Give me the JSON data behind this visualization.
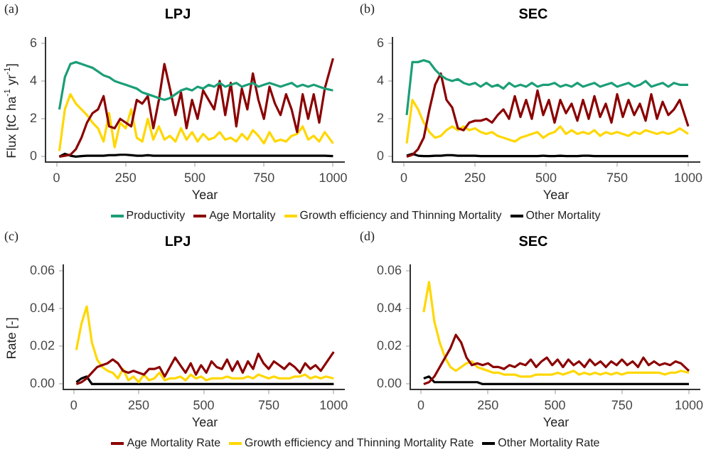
{
  "chart_data": [
    {
      "type": "line",
      "title": "LPJ",
      "xlabel": "Year",
      "ylabel": "Flux [tC ha$^{-1}$ yr$^{-1}$]",
      "annotations": [
        "(a)"
      ],
      "legend": "bottom",
      "marker": "none",
      "x": [
        10,
        30,
        50,
        70,
        90,
        110,
        130,
        150,
        170,
        190,
        210,
        230,
        250,
        270,
        290,
        310,
        330,
        350,
        370,
        390,
        410,
        430,
        450,
        470,
        490,
        510,
        530,
        550,
        570,
        590,
        610,
        630,
        650,
        670,
        690,
        710,
        730,
        750,
        770,
        790,
        810,
        830,
        850,
        870,
        890,
        910,
        930,
        950,
        970,
        1000
      ],
      "xlim": [
        -40,
        1040
      ],
      "xticks": [
        0,
        250,
        500,
        750,
        1000
      ],
      "ylim": [
        -0.3,
        6.3
      ],
      "yticks": [
        0,
        2,
        4,
        6
      ],
      "series": [
        {
          "name": "Productivity",
          "color": "#1b9e77",
          "values": [
            2.5,
            4.2,
            4.9,
            5.0,
            4.9,
            4.8,
            4.7,
            4.5,
            4.3,
            4.2,
            4.0,
            3.9,
            3.8,
            3.7,
            3.6,
            3.4,
            3.3,
            3.2,
            3.1,
            3.0,
            3.1,
            3.3,
            3.5,
            3.6,
            3.5,
            3.7,
            3.6,
            3.8,
            3.7,
            3.9,
            3.7,
            3.8,
            3.9,
            3.7,
            3.8,
            3.9,
            3.7,
            3.8,
            3.9,
            3.8,
            3.7,
            3.8,
            3.9,
            3.7,
            3.8,
            3.7,
            3.8,
            3.7,
            3.6,
            3.5
          ]
        },
        {
          "name": "Age Mortality",
          "color": "#8b0000",
          "values": [
            0,
            0.05,
            0.1,
            0.4,
            1.0,
            1.8,
            2.3,
            2.5,
            3.2,
            1.6,
            1.5,
            2.0,
            1.8,
            1.6,
            3.0,
            2.8,
            3.2,
            1.5,
            3.0,
            4.9,
            3.6,
            2.2,
            3.4,
            1.5,
            3.0,
            2.0,
            3.5,
            3.0,
            2.5,
            4.0,
            2.2,
            3.9,
            1.6,
            3.6,
            2.5,
            4.4,
            3.0,
            2.0,
            3.7,
            2.8,
            2.2,
            3.3,
            2.5,
            1.3,
            3.3,
            2.0,
            3.3,
            1.8,
            3.6,
            5.2
          ]
        },
        {
          "name": "Growth efficiency and Thinning Mortality",
          "color": "#ffd700",
          "values": [
            0.3,
            2.5,
            3.3,
            2.8,
            2.5,
            2.2,
            1.8,
            1.5,
            0.8,
            2.3,
            0.5,
            1.8,
            1.5,
            2.5,
            1.0,
            0.8,
            2.0,
            0.9,
            1.6,
            0.9,
            1.1,
            0.8,
            1.5,
            0.9,
            1.3,
            0.8,
            1.2,
            0.9,
            1.0,
            1.3,
            0.9,
            1.0,
            0.8,
            1.2,
            0.9,
            1.4,
            1.1,
            0.7,
            1.3,
            0.8,
            0.9,
            0.8,
            1.1,
            1.2,
            1.6,
            0.9,
            1.1,
            0.8,
            1.3,
            0.7
          ]
        },
        {
          "name": "Other Mortality",
          "color": "#000000",
          "values": [
            0,
            0.15,
            0.05,
            0,
            0.03,
            0.05,
            0.05,
            0.05,
            0.05,
            0.08,
            0.08,
            0.1,
            0.1,
            0.08,
            0.05,
            0.05,
            0.08,
            0.05,
            0.05,
            0.05,
            0.05,
            0.05,
            0.05,
            0.05,
            0.05,
            0.05,
            0.05,
            0.05,
            0.05,
            0.05,
            0.05,
            0.05,
            0.05,
            0.05,
            0.05,
            0.05,
            0.05,
            0.05,
            0.05,
            0.05,
            0.05,
            0.05,
            0.05,
            0.05,
            0.05,
            0.05,
            0.05,
            0.05,
            0.05,
            0.03
          ]
        }
      ]
    },
    {
      "type": "line",
      "title": "SEC",
      "xlabel": "Year",
      "annotations": [
        "(b)"
      ],
      "marker": "none",
      "x": [
        10,
        30,
        50,
        70,
        90,
        110,
        130,
        150,
        170,
        190,
        210,
        230,
        250,
        270,
        290,
        310,
        330,
        350,
        370,
        390,
        410,
        430,
        450,
        470,
        490,
        510,
        530,
        550,
        570,
        590,
        610,
        630,
        650,
        670,
        690,
        710,
        730,
        750,
        770,
        790,
        810,
        830,
        850,
        870,
        890,
        910,
        930,
        950,
        970,
        1000
      ],
      "xlim": [
        -40,
        1040
      ],
      "xticks": [
        0,
        250,
        500,
        750,
        1000
      ],
      "ylim": [
        -0.3,
        6.3
      ],
      "yticks": [
        0,
        2,
        4,
        6
      ],
      "series": [
        {
          "color": "#1b9e77",
          "values": [
            2.2,
            5.0,
            5.0,
            5.1,
            5.0,
            4.6,
            4.3,
            4.1,
            4.0,
            4.1,
            3.9,
            3.8,
            3.9,
            3.7,
            3.9,
            3.7,
            3.8,
            3.6,
            3.9,
            3.7,
            3.8,
            3.7,
            3.9,
            3.7,
            3.8,
            3.8,
            3.9,
            3.7,
            3.8,
            3.7,
            3.9,
            3.7,
            3.8,
            3.9,
            3.7,
            3.8,
            3.9,
            3.7,
            3.8,
            3.9,
            3.7,
            3.8,
            4.0,
            3.7,
            3.8,
            3.9,
            3.7,
            3.9,
            3.8,
            3.8
          ]
        },
        {
          "color": "#8b0000",
          "values": [
            0,
            0.1,
            0.4,
            1.0,
            2.5,
            3.8,
            4.4,
            3.0,
            2.6,
            1.5,
            1.4,
            1.8,
            1.9,
            1.9,
            2.0,
            1.8,
            2.2,
            2.5,
            2.0,
            3.2,
            2.1,
            3.0,
            2.0,
            3.5,
            2.2,
            3.0,
            1.8,
            3.0,
            2.3,
            2.8,
            1.9,
            3.0,
            2.0,
            3.2,
            2.1,
            2.8,
            1.8,
            3.3,
            2.1,
            3.0,
            2.2,
            2.8,
            1.9,
            3.3,
            2.0,
            2.9,
            2.2,
            2.5,
            3.0,
            1.6
          ]
        },
        {
          "color": "#ffd700",
          "values": [
            0.7,
            3.0,
            2.5,
            1.8,
            1.3,
            1.0,
            1.1,
            1.4,
            1.6,
            1.4,
            1.6,
            1.4,
            1.5,
            1.3,
            1.2,
            1.3,
            1.1,
            1.0,
            0.9,
            0.8,
            1.0,
            1.1,
            1.2,
            1.3,
            1.0,
            1.2,
            1.3,
            1.6,
            1.2,
            1.4,
            1.2,
            1.3,
            1.2,
            1.4,
            1.1,
            1.3,
            1.2,
            1.3,
            1.2,
            1.1,
            1.3,
            1.2,
            1.4,
            1.3,
            1.2,
            1.3,
            1.2,
            1.3,
            1.5,
            1.2
          ]
        },
        {
          "color": "#000000",
          "values": [
            0.05,
            0.15,
            0.05,
            0.03,
            0.03,
            0.05,
            0.05,
            0.08,
            0.08,
            0.05,
            0.05,
            0.05,
            0.05,
            0.03,
            0.03,
            0.03,
            0.03,
            0.03,
            0.03,
            0.03,
            0.03,
            0.03,
            0.03,
            0.03,
            0.05,
            0.03,
            0.03,
            0.05,
            0.03,
            0.03,
            0.03,
            0.05,
            0.05,
            0.03,
            0.03,
            0.03,
            0.03,
            0.03,
            0.03,
            0.03,
            0.03,
            0.03,
            0.03,
            0.03,
            0.03,
            0.03,
            0.03,
            0.03,
            0.03,
            0.03
          ]
        }
      ]
    },
    {
      "type": "line",
      "title": "LPJ",
      "xlabel": "Year",
      "ylabel": "Rate [-]",
      "annotations": [
        "(c)"
      ],
      "legend": "bottom",
      "marker": "none",
      "x": [
        10,
        30,
        50,
        70,
        90,
        110,
        130,
        150,
        170,
        190,
        210,
        230,
        250,
        270,
        290,
        310,
        330,
        350,
        370,
        390,
        410,
        430,
        450,
        470,
        490,
        510,
        530,
        550,
        570,
        590,
        610,
        630,
        650,
        670,
        690,
        710,
        730,
        750,
        770,
        790,
        810,
        830,
        850,
        870,
        890,
        910,
        930,
        950,
        970,
        1000
      ],
      "xlim": [
        -40,
        1040
      ],
      "xticks": [
        0,
        250,
        500,
        750,
        1000
      ],
      "ylim": [
        -0.003,
        0.063
      ],
      "yticks": [
        {
          "value": 0,
          "label": "0.00"
        },
        {
          "value": 0.02,
          "label": "0.02"
        },
        {
          "value": 0.04,
          "label": "0.04"
        },
        {
          "value": 0.06,
          "label": "0.06"
        }
      ],
      "series": [
        {
          "name": "Age Mortality Rate",
          "color": "#8b0000",
          "values": [
            0,
            0.001,
            0.003,
            0.006,
            0.009,
            0.01,
            0.011,
            0.013,
            0.011,
            0.007,
            0.006,
            0.007,
            0.006,
            0.005,
            0.008,
            0.008,
            0.009,
            0.004,
            0.009,
            0.014,
            0.01,
            0.006,
            0.011,
            0.005,
            0.01,
            0.006,
            0.012,
            0.009,
            0.008,
            0.013,
            0.007,
            0.012,
            0.006,
            0.012,
            0.008,
            0.016,
            0.011,
            0.008,
            0.012,
            0.01,
            0.008,
            0.011,
            0.009,
            0.006,
            0.011,
            0.008,
            0.01,
            0.007,
            0.011,
            0.017
          ]
        },
        {
          "name": "Growth efficiency and Thinning Mortality Rate",
          "color": "#ffd700",
          "values": [
            0.018,
            0.032,
            0.041,
            0.022,
            0.013,
            0.009,
            0.007,
            0.006,
            0.003,
            0.008,
            0.002,
            0.004,
            0.001,
            0.005,
            0.002,
            0.003,
            0.006,
            0.002,
            0.003,
            0.003,
            0.004,
            0.002,
            0.005,
            0.003,
            0.004,
            0.002,
            0.003,
            0.003,
            0.003,
            0.004,
            0.003,
            0.003,
            0.003,
            0.004,
            0.003,
            0.005,
            0.004,
            0.003,
            0.004,
            0.003,
            0.003,
            0.003,
            0.004,
            0.004,
            0.005,
            0.003,
            0.004,
            0.003,
            0.004,
            0.003
          ]
        },
        {
          "name": "Other Mortality Rate",
          "color": "#000000",
          "values": [
            0.001,
            0.003,
            0.004,
            0,
            0,
            0,
            0,
            0,
            0,
            0,
            0,
            0,
            0,
            0,
            0,
            0,
            0,
            0,
            0,
            0,
            0,
            0,
            0,
            0,
            0,
            0,
            0,
            0,
            0,
            0,
            0,
            0,
            0,
            0,
            0,
            0,
            0,
            0,
            0,
            0,
            0,
            0,
            0,
            0,
            0,
            0,
            0,
            0,
            0,
            0
          ]
        }
      ]
    },
    {
      "type": "line",
      "title": "SEC",
      "xlabel": "Year",
      "annotations": [
        "(d)"
      ],
      "marker": "none",
      "x": [
        10,
        30,
        50,
        70,
        90,
        110,
        130,
        150,
        170,
        190,
        210,
        230,
        250,
        270,
        290,
        310,
        330,
        350,
        370,
        390,
        410,
        430,
        450,
        470,
        490,
        510,
        530,
        550,
        570,
        590,
        610,
        630,
        650,
        670,
        690,
        710,
        730,
        750,
        770,
        790,
        810,
        830,
        850,
        870,
        890,
        910,
        930,
        950,
        970,
        1000
      ],
      "xlim": [
        -40,
        1040
      ],
      "xticks": [
        0,
        250,
        500,
        750,
        1000
      ],
      "ylim": [
        -0.003,
        0.063
      ],
      "yticks": [
        {
          "value": 0,
          "label": "0.00"
        },
        {
          "value": 0.02,
          "label": "0.02"
        },
        {
          "value": 0.04,
          "label": "0.04"
        },
        {
          "value": 0.06,
          "label": "0.06"
        }
      ],
      "series": [
        {
          "color": "#8b0000",
          "values": [
            0,
            0.001,
            0.004,
            0.009,
            0.014,
            0.019,
            0.026,
            0.022,
            0.014,
            0.01,
            0.011,
            0.01,
            0.011,
            0.009,
            0.009,
            0.008,
            0.01,
            0.009,
            0.011,
            0.01,
            0.013,
            0.009,
            0.012,
            0.014,
            0.01,
            0.013,
            0.009,
            0.013,
            0.01,
            0.012,
            0.009,
            0.013,
            0.01,
            0.012,
            0.009,
            0.012,
            0.01,
            0.013,
            0.01,
            0.012,
            0.009,
            0.014,
            0.01,
            0.012,
            0.01,
            0.011,
            0.01,
            0.012,
            0.011,
            0.007
          ]
        },
        {
          "color": "#ffd700",
          "values": [
            0.038,
            0.054,
            0.033,
            0.022,
            0.014,
            0.009,
            0.007,
            0.009,
            0.011,
            0.012,
            0.009,
            0.008,
            0.007,
            0.006,
            0.006,
            0.005,
            0.005,
            0.005,
            0.004,
            0.004,
            0.004,
            0.005,
            0.005,
            0.005,
            0.005,
            0.006,
            0.005,
            0.006,
            0.007,
            0.005,
            0.006,
            0.005,
            0.006,
            0.005,
            0.006,
            0.005,
            0.006,
            0.005,
            0.006,
            0.006,
            0.006,
            0.006,
            0.006,
            0.006,
            0.006,
            0.005,
            0.006,
            0.006,
            0.007,
            0.006
          ]
        },
        {
          "color": "#000000",
          "values": [
            0.003,
            0.004,
            0.001,
            0.001,
            0.001,
            0.001,
            0.001,
            0.001,
            0.001,
            0.001,
            0.001,
            0,
            0,
            0,
            0,
            0,
            0,
            0,
            0,
            0,
            0,
            0,
            0,
            0,
            0,
            0,
            0,
            0,
            0,
            0,
            0,
            0,
            0,
            0,
            0,
            0,
            0,
            0,
            0,
            0,
            0,
            0,
            0,
            0,
            0,
            0,
            0,
            0,
            0,
            0
          ]
        }
      ]
    }
  ]
}
